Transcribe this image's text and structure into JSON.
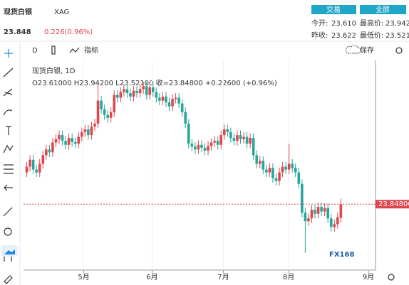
{
  "header": {
    "name": "现货白银",
    "code": "XAG",
    "price": "23.848",
    "change": "0.226(0.96%)",
    "buttons": [
      "交易",
      "全屏"
    ],
    "stats": [
      {
        "label": "今开:",
        "value": "23.610"
      },
      {
        "label": "最高价:",
        "value": "23.942"
      },
      {
        "label": "昨收:",
        "value": "23.622"
      },
      {
        "label": "最低价:",
        "value": "23.521"
      }
    ]
  },
  "toolbar": {
    "interval": "D",
    "indicators": "指标",
    "save": "保存"
  },
  "legend": {
    "title": "现货白银, 1D",
    "ohlc": "O23.61000  H23.94200  L23.52100  收=23.84800  +0.22600 (+0.96%)"
  },
  "watermark": "FX168",
  "chart_data": {
    "type": "candlestick",
    "up_color": "#e0464d",
    "down_color": "#26a69a",
    "xlim": [
      -1,
      107.7
    ],
    "xticks": [
      {
        "value": 17.6,
        "label": "5月"
      },
      {
        "value": 38.7,
        "label": "6月"
      },
      {
        "value": 60.7,
        "label": "7月"
      },
      {
        "value": 80.9,
        "label": "8月"
      },
      {
        "value": 105.5,
        "label": "9月"
      }
    ],
    "ylim": [
      22.7,
      26.35
    ],
    "price_line": {
      "value": 23.848,
      "label": "23.84800"
    },
    "open": [
      24.4,
      24.5,
      24.62,
      24.45,
      24.4,
      24.55,
      24.7,
      24.8,
      24.75,
      24.92,
      24.98,
      25.05,
      24.95,
      24.88,
      25.0,
      24.93,
      24.9,
      25.02,
      25.1,
      25.15,
      25.05,
      25.2,
      25.25,
      25.65,
      25.5,
      25.4,
      25.35,
      25.45,
      25.75,
      25.7,
      25.8,
      25.85,
      25.78,
      25.72,
      25.82,
      25.78,
      25.85,
      25.9,
      25.75,
      25.88,
      25.8,
      25.7,
      25.65,
      25.72,
      25.62,
      25.55,
      25.68,
      25.7,
      25.6,
      25.45,
      25.25,
      24.9,
      24.85,
      24.8,
      24.88,
      24.83,
      24.78,
      24.86,
      24.92,
      24.95,
      24.88,
      25.05,
      25.15,
      25.1,
      25.0,
      24.95,
      25.05,
      24.98,
      25.02,
      24.9,
      25.0,
      24.7,
      24.55,
      24.6,
      24.45,
      24.4,
      24.48,
      24.3,
      24.25,
      24.4,
      24.5,
      24.45,
      24.55,
      24.48,
      24.4,
      24.2,
      23.7,
      23.55,
      23.6,
      23.75,
      23.68,
      23.8,
      23.72,
      23.78,
      23.6,
      23.45,
      23.5,
      23.61
    ],
    "high": [
      24.58,
      24.7,
      24.7,
      24.53,
      24.63,
      24.78,
      24.88,
      24.88,
      25.0,
      25.06,
      25.13,
      25.13,
      25.03,
      25.08,
      25.08,
      25.01,
      25.1,
      25.18,
      25.23,
      25.23,
      25.28,
      25.33,
      25.92,
      25.73,
      25.58,
      25.48,
      25.53,
      25.83,
      25.83,
      25.88,
      25.93,
      25.93,
      25.86,
      25.9,
      25.9,
      25.93,
      25.98,
      25.98,
      25.96,
      25.96,
      25.88,
      25.78,
      25.8,
      25.8,
      25.7,
      25.76,
      25.78,
      25.78,
      25.68,
      25.53,
      25.33,
      24.98,
      24.93,
      24.96,
      24.96,
      24.91,
      24.94,
      25.0,
      25.03,
      25.03,
      25.13,
      25.23,
      25.23,
      25.18,
      25.08,
      25.13,
      25.13,
      25.1,
      25.1,
      25.08,
      25.08,
      24.78,
      24.68,
      24.68,
      24.53,
      24.56,
      24.56,
      24.38,
      24.48,
      24.58,
      24.58,
      24.9,
      24.63,
      24.56,
      24.48,
      24.28,
      23.78,
      23.68,
      23.83,
      23.83,
      23.88,
      23.88,
      23.86,
      23.86,
      23.68,
      23.58,
      23.7,
      23.942
    ],
    "low": [
      24.32,
      24.42,
      24.37,
      24.32,
      24.32,
      24.47,
      24.62,
      24.67,
      24.67,
      24.84,
      24.9,
      24.87,
      24.8,
      24.8,
      24.85,
      24.82,
      24.82,
      24.94,
      25.02,
      24.97,
      24.97,
      25.12,
      25.17,
      25.42,
      25.32,
      25.27,
      25.27,
      25.37,
      25.62,
      25.62,
      25.72,
      25.7,
      25.64,
      25.64,
      25.7,
      25.7,
      25.77,
      25.67,
      25.67,
      25.72,
      25.62,
      25.57,
      25.57,
      25.54,
      25.47,
      25.47,
      25.6,
      25.52,
      25.37,
      25.17,
      24.82,
      24.77,
      24.72,
      24.72,
      24.75,
      24.7,
      24.7,
      24.78,
      24.84,
      24.8,
      24.8,
      24.97,
      25.02,
      24.92,
      24.87,
      24.87,
      24.9,
      24.9,
      24.82,
      24.82,
      24.62,
      24.47,
      24.47,
      24.37,
      24.32,
      24.32,
      24.22,
      24.17,
      24.17,
      24.32,
      24.37,
      24.37,
      24.4,
      24.32,
      24.12,
      23.62,
      23.0,
      23.47,
      23.52,
      23.6,
      23.6,
      23.64,
      23.64,
      23.52,
      23.37,
      23.37,
      23.42,
      23.521
    ],
    "close": [
      24.5,
      24.62,
      24.45,
      24.4,
      24.55,
      24.7,
      24.8,
      24.75,
      24.92,
      24.98,
      25.05,
      24.95,
      24.88,
      25.0,
      24.93,
      24.9,
      25.02,
      25.1,
      25.15,
      25.05,
      25.2,
      25.25,
      25.65,
      25.5,
      25.4,
      25.35,
      25.45,
      25.75,
      25.7,
      25.8,
      25.85,
      25.78,
      25.72,
      25.82,
      25.78,
      25.85,
      25.9,
      25.75,
      25.88,
      25.8,
      25.7,
      25.65,
      25.72,
      25.62,
      25.55,
      25.68,
      25.7,
      25.6,
      25.45,
      25.25,
      24.9,
      24.85,
      24.8,
      24.88,
      24.83,
      24.78,
      24.86,
      24.92,
      24.95,
      24.88,
      25.05,
      25.15,
      25.1,
      25.0,
      24.95,
      25.05,
      24.98,
      25.02,
      24.9,
      25.0,
      24.7,
      24.55,
      24.6,
      24.45,
      24.4,
      24.48,
      24.3,
      24.25,
      24.4,
      24.5,
      24.45,
      24.55,
      24.48,
      24.4,
      24.2,
      23.7,
      23.55,
      23.6,
      23.75,
      23.68,
      23.8,
      23.72,
      23.78,
      23.6,
      23.45,
      23.5,
      23.622,
      23.848
    ]
  }
}
